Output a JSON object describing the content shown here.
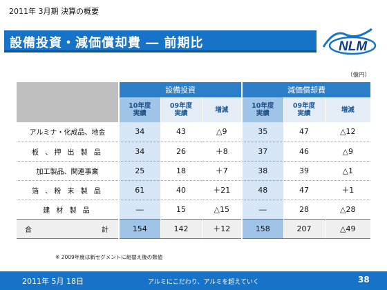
{
  "header": {
    "subtitle": "2011年 3月期  決算の概要",
    "title": "設備投資・減価償却費 ― 前期比",
    "logo_text": "NLM"
  },
  "unit": "（億円）",
  "table": {
    "groups": [
      "設備投資",
      "減価償却費"
    ],
    "subheaders": {
      "current": [
        "10年度",
        "実績"
      ],
      "previous": [
        "09年度",
        "実績"
      ],
      "change": "増減"
    },
    "rows": [
      {
        "label": "アルミナ・化成品、地金",
        "values": [
          "34",
          "43",
          "△9",
          "35",
          "47",
          "△12"
        ]
      },
      {
        "label": "板 、押 出 製 品",
        "values": [
          "34",
          "26",
          "＋8",
          "37",
          "46",
          "△9"
        ]
      },
      {
        "label": "加工製品、関連事業",
        "values": [
          "25",
          "18",
          "＋7",
          "38",
          "39",
          "△1"
        ]
      },
      {
        "label": "箔 、粉 末 製 品",
        "values": [
          "61",
          "40",
          "＋21",
          "48",
          "47",
          "＋1"
        ]
      },
      {
        "label": "建  材  製  品",
        "values": [
          "―",
          "15",
          "△15",
          "―",
          "28",
          "△28"
        ]
      }
    ],
    "total": {
      "label_left": "合",
      "label_right": "計",
      "values": [
        "154",
        "142",
        "＋12",
        "158",
        "207",
        "△49"
      ]
    }
  },
  "note": "※ 2009年度は新セグメントに組替え後の数値",
  "footer": {
    "date": "2011年 5月 18日",
    "slogan": "アルミにこだわり、アルミを超えていく",
    "page": "38"
  },
  "colors": {
    "brand_blue": "#1673c7",
    "header_blue": "#2d7ec8",
    "current_col": "#d6e6f6"
  }
}
